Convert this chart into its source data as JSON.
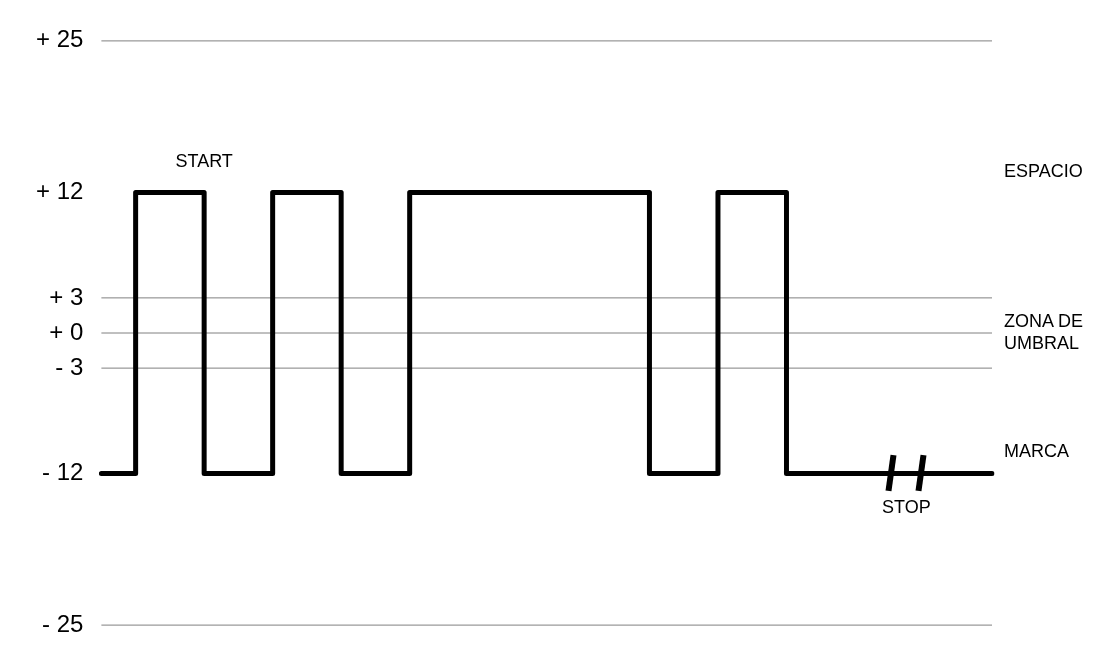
{
  "chart_data": {
    "type": "step",
    "categories": [
      null,
      null,
      null,
      null,
      null,
      null,
      null,
      null,
      null,
      null,
      null,
      null,
      null,
      null,
      null,
      null,
      null,
      null,
      null,
      null,
      null,
      null,
      null,
      null,
      null,
      null,
      null
    ],
    "tick_labels": "y",
    "series": [
      {
        "color": "#000000",
        "values": [
          -12,
          -12,
          12,
          12,
          -12,
          -12,
          12,
          12,
          -12,
          -12,
          12,
          12,
          12,
          12,
          12,
          12,
          12,
          -12,
          -12,
          12,
          12,
          -12,
          -12,
          -12,
          -12,
          -12,
          -12
        ]
      }
    ],
    "ylim": [
      -25,
      25
    ],
    "yticks": [
      {
        "value": 25,
        "label": "+ 25"
      },
      {
        "value": 12,
        "label": "+ 12"
      },
      {
        "value": 3,
        "label": "+ 3"
      },
      {
        "value": 0,
        "label": "+ 0"
      },
      {
        "value": -3,
        "label": "- 3"
      },
      {
        "value": -12,
        "label": "- 12"
      },
      {
        "value": -25,
        "label": "- 25"
      }
    ],
    "grid": false,
    "legend": false,
    "marker": "none",
    "line_style": "solid",
    "ref_lines": [
      {
        "axis": "y",
        "value": 3,
        "color": "#808080"
      },
      {
        "axis": "y",
        "value": 0,
        "color": "#808080"
      },
      {
        "axis": "y",
        "value": -3,
        "color": "#808080"
      }
    ],
    "annotations": [
      "START",
      "ESPACIO",
      "ZONA DE\nUMBRAL",
      "MARCA",
      "STOP"
    ]
  }
}
